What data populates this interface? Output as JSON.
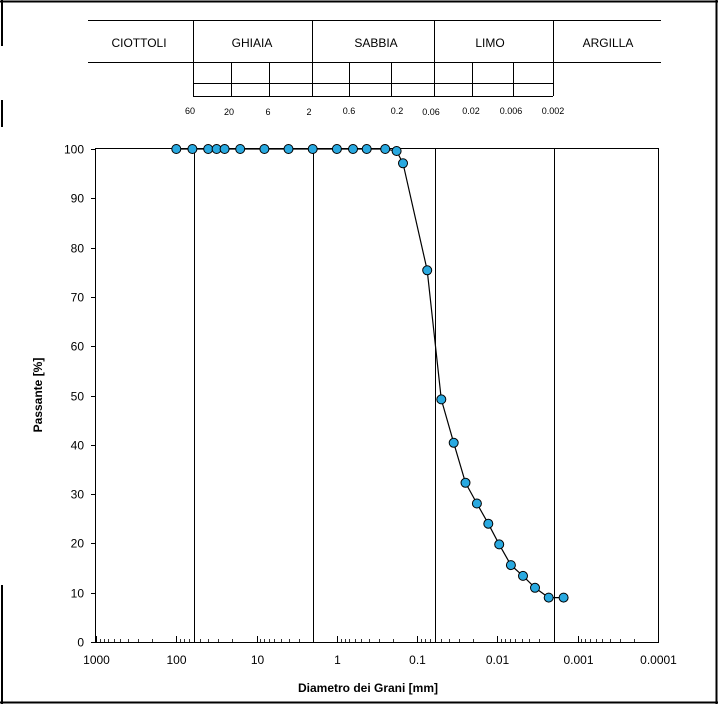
{
  "classification": {
    "classes": [
      "CIOTTOLI",
      "GHIAIA",
      "SABBIA",
      "LIMO",
      "ARGILLA"
    ],
    "boundary_labels": [
      "60",
      "20",
      "6",
      "2",
      "0.6",
      "0.2",
      "0.06",
      "0.02",
      "0.006",
      "0.002"
    ]
  },
  "chart_data": {
    "type": "scatter",
    "xlabel": "Diametro dei Grani [mm]",
    "ylabel": "Passante [%]",
    "x_scale": "log",
    "x_reversed": true,
    "xlim": [
      1000,
      0.0001
    ],
    "ylim": [
      0,
      100
    ],
    "x_tick_labels": [
      "1000",
      "100",
      "10",
      "1",
      "0.1",
      "0.01",
      "0.001",
      "0.0001"
    ],
    "y_tick_labels": [
      "0",
      "10",
      "20",
      "30",
      "40",
      "50",
      "60",
      "70",
      "80",
      "90",
      "100"
    ],
    "vertical_lines_at": [
      60,
      2,
      0.06,
      0.002
    ],
    "grid": false,
    "line_color": "#000000",
    "marker_color": "#29a9e0",
    "series": [
      {
        "x": [
          100,
          63,
          40,
          31.5,
          25,
          16,
          8,
          4,
          2,
          1,
          0.63,
          0.425,
          0.25,
          0.18,
          0.15,
          0.075,
          0.05,
          0.035,
          0.025,
          0.018,
          0.013,
          0.0095,
          0.0068,
          0.0048,
          0.0034,
          0.0023,
          0.0015
        ],
        "y": [
          100,
          100,
          100,
          100,
          100,
          100,
          100,
          100,
          100,
          100,
          100,
          100,
          100,
          99.6,
          97.1,
          75.4,
          49.2,
          40.4,
          32.3,
          28.1,
          24.0,
          19.8,
          15.6,
          13.4,
          11.0,
          9.0,
          9.0
        ]
      }
    ]
  }
}
